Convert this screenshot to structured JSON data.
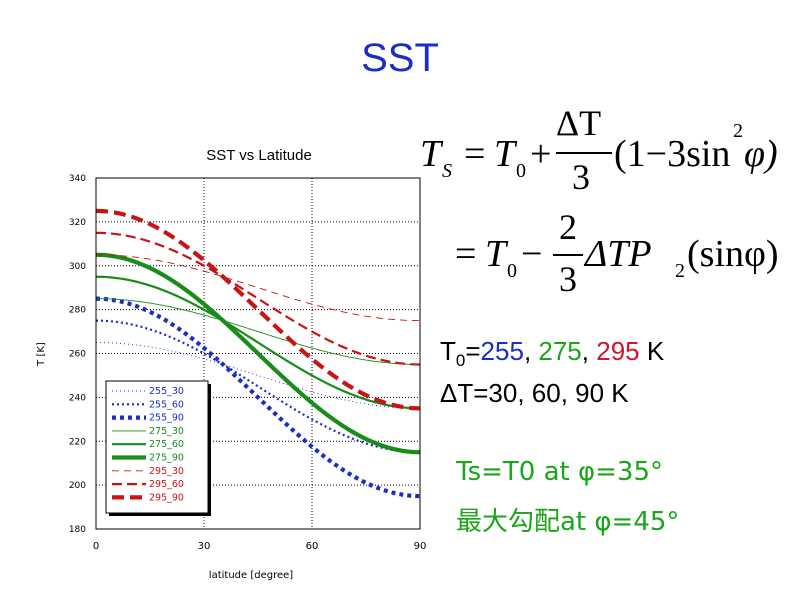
{
  "slide": {
    "title": "SST",
    "t0_prefix": "T",
    "t0_sub": "0",
    "t0_eq": "=",
    "t0_v1": "255",
    "t0_v2": "275",
    "t0_v3": "295",
    "t0_unit": " K",
    "sep": ", ",
    "dt_text": "ΔT=30, 60, 90 K",
    "note1": "Ts=T0 at φ=35°",
    "note2": "最大勾配at φ=45°"
  },
  "equation": {
    "ts": "T",
    "ts_sub": "S",
    "eq": "=",
    "t0": "T",
    "t0_sub": "0",
    "plus": "+",
    "minus": "−",
    "dt_num": "ΔT",
    "den": "3",
    "paren_open": "(1−3sin",
    "sq": "2",
    "paren_close": "φ)",
    "two": "2",
    "dtp": "ΔTP",
    "p_sub": "2",
    "sinphi": "(sinφ)"
  },
  "colors": {
    "blue": "#1a2ec4",
    "green": "#1a8c1a",
    "red": "#c81414"
  },
  "chart_data": {
    "type": "line",
    "title": "SST vs Latitude",
    "xlabel": "latitude [degree]",
    "ylabel": "T [K]",
    "xlim": [
      0,
      90
    ],
    "ylim": [
      180,
      340
    ],
    "xticks": [
      0,
      30,
      60,
      90
    ],
    "yticks": [
      180,
      200,
      220,
      240,
      260,
      280,
      300,
      320,
      340
    ],
    "grid": true,
    "legend_position": "bottom-left",
    "series": [
      {
        "name": "255_30",
        "T0": 255,
        "dT": 30,
        "color": "blue",
        "style": "dotted",
        "weight": 1
      },
      {
        "name": "255_60",
        "T0": 255,
        "dT": 60,
        "color": "blue",
        "style": "dotted",
        "weight": 2
      },
      {
        "name": "255_90",
        "T0": 255,
        "dT": 90,
        "color": "blue",
        "style": "dotted",
        "weight": 3
      },
      {
        "name": "275_30",
        "T0": 275,
        "dT": 30,
        "color": "green",
        "style": "solid",
        "weight": 1
      },
      {
        "name": "275_60",
        "T0": 275,
        "dT": 60,
        "color": "green",
        "style": "solid",
        "weight": 2
      },
      {
        "name": "275_90",
        "T0": 275,
        "dT": 90,
        "color": "green",
        "style": "solid",
        "weight": 3
      },
      {
        "name": "295_30",
        "T0": 295,
        "dT": 30,
        "color": "red",
        "style": "dashed",
        "weight": 1
      },
      {
        "name": "295_60",
        "T0": 295,
        "dT": 60,
        "color": "red",
        "style": "dashed",
        "weight": 2
      },
      {
        "name": "295_90",
        "T0": 295,
        "dT": 90,
        "color": "red",
        "style": "dashed",
        "weight": 3
      }
    ]
  }
}
